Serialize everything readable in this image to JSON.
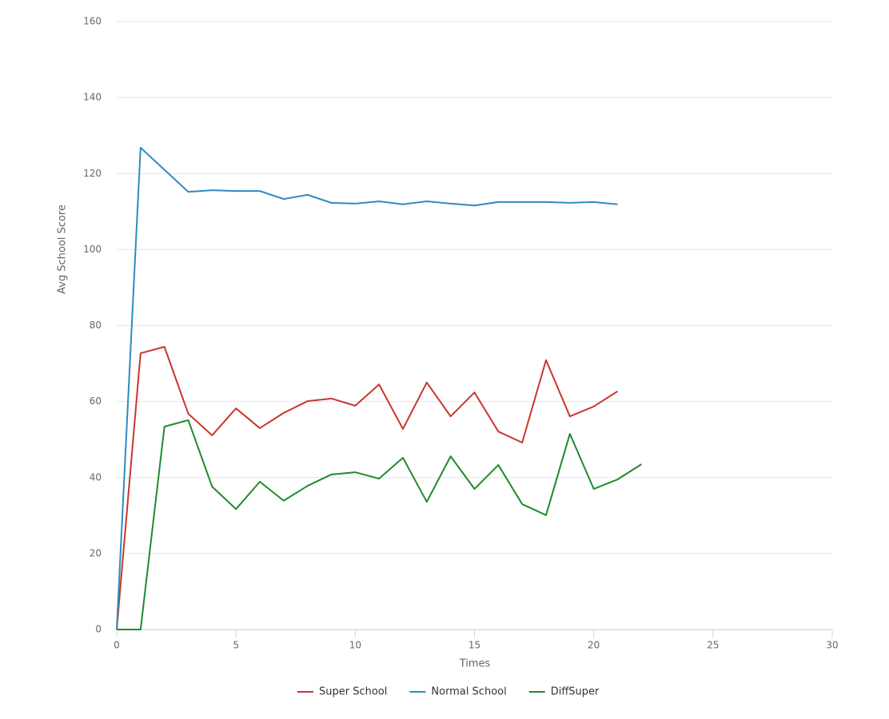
{
  "chart_data": {
    "type": "line",
    "x_label": "Times",
    "y_label": "Avg School Score",
    "x": [
      0,
      1,
      2,
      3,
      4,
      5,
      6,
      7,
      8,
      9,
      10,
      11,
      12,
      13,
      14,
      15,
      16,
      17,
      18,
      19,
      20,
      21,
      22
    ],
    "series": [
      {
        "name": "Super School",
        "color": "#c9352f",
        "values": [
          0,
          72.7,
          74.4,
          56.8,
          51.1,
          58.2,
          53,
          57,
          60.1,
          60.8,
          58.9,
          64.5,
          52.8,
          65,
          56.1,
          62.4,
          52.1,
          49.2,
          70.9,
          56.1,
          58.7,
          62.7,
          null
        ]
      },
      {
        "name": "Normal School",
        "color": "#2e8bc0",
        "values": [
          0,
          126.8,
          121,
          115.2,
          115.6,
          115.4,
          115.4,
          113.3,
          114.4,
          112.3,
          112.1,
          112.7,
          111.9,
          112.7,
          112.1,
          111.6,
          112.5,
          112.5,
          112.5,
          112.3,
          112.5,
          111.9,
          null
        ]
      },
      {
        "name": "DiffSuper",
        "color": "#1f8a2b",
        "values": [
          0,
          0,
          53.4,
          55.1,
          37.6,
          31.7,
          38.9,
          33.9,
          37.8,
          40.8,
          41.4,
          39.7,
          45.2,
          33.6,
          45.6,
          37,
          43.3,
          33,
          30.1,
          51.5,
          37,
          39.5,
          43.5
        ]
      }
    ],
    "xlim": [
      0,
      30
    ],
    "xticks": [
      0,
      5,
      10,
      15,
      20,
      25,
      30
    ],
    "ylim": [
      0,
      160
    ],
    "yticks": [
      0,
      20,
      40,
      60,
      80,
      100,
      120,
      140,
      160
    ],
    "grid": true,
    "legend": "bottom"
  }
}
